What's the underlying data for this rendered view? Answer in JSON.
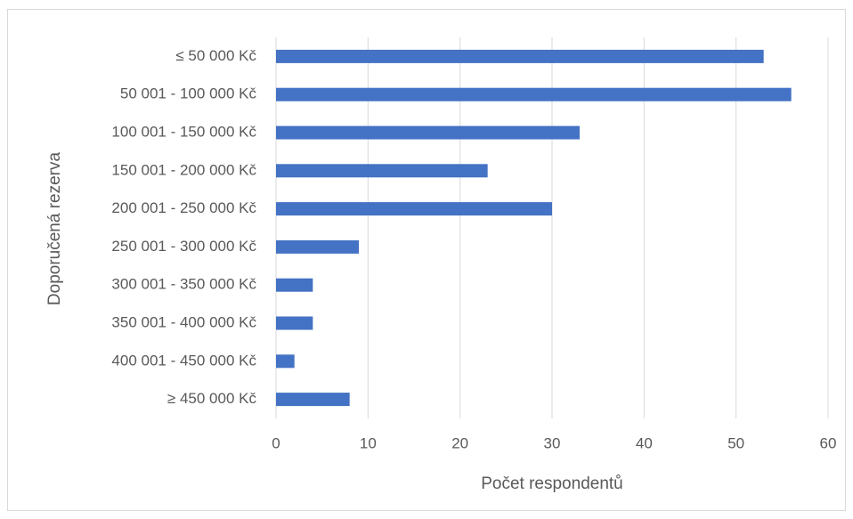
{
  "chart_data": {
    "type": "bar",
    "orientation": "horizontal",
    "x_label": "Počet respondentů",
    "y_label": "Doporučená rezerva",
    "categories": [
      "≤ 50 000 Kč",
      "50 001 - 100 000 Kč",
      "100 001 - 150 000 Kč",
      "150 001 - 200 000 Kč",
      "200 001 - 250 000 Kč",
      "250 001 - 300 000 Kč",
      "300 001 - 350 000 Kč",
      "350 001 - 400 000 Kč",
      "400 001 - 450 000 Kč",
      "≥ 450 000 Kč"
    ],
    "values": [
      53,
      56,
      33,
      23,
      30,
      9,
      4,
      4,
      2,
      8
    ],
    "color": "#4472c4",
    "xlim": [
      0,
      60
    ],
    "xticks": [
      0,
      10,
      20,
      30,
      40,
      50,
      60
    ],
    "grid": true
  }
}
